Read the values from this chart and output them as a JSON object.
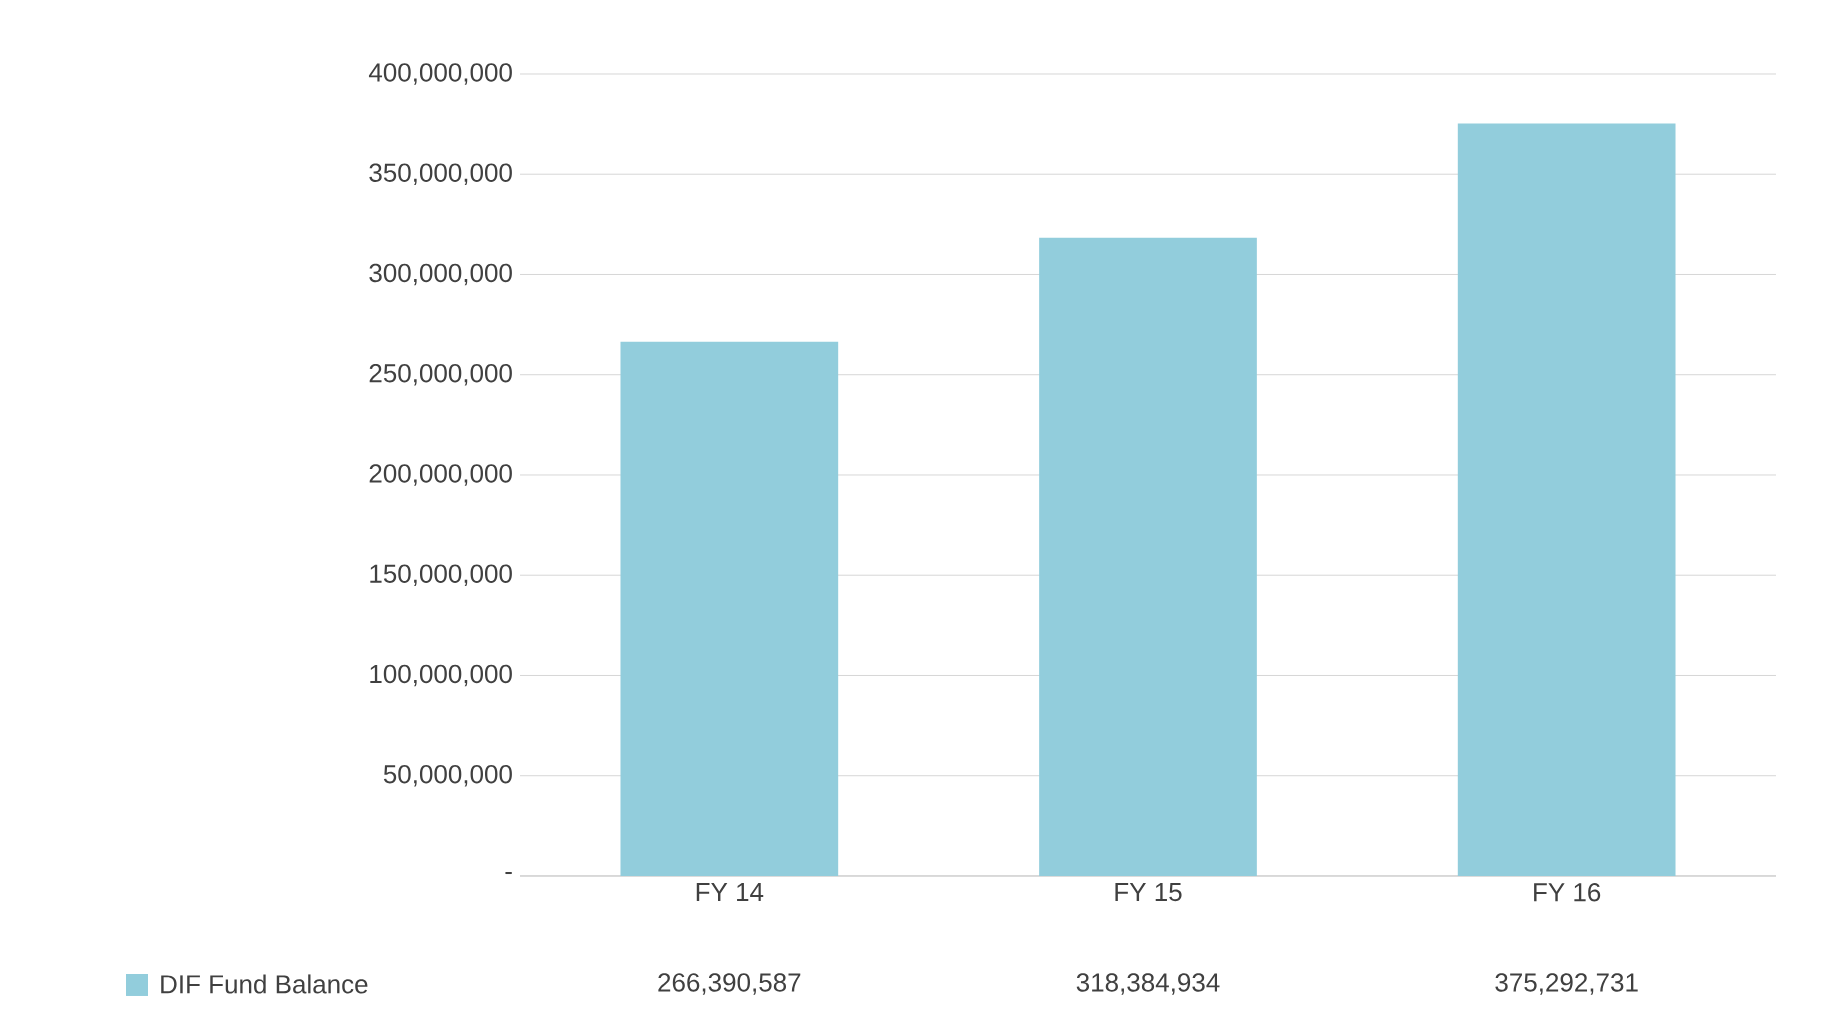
{
  "chart_data": {
    "type": "bar",
    "categories": [
      "FY 14",
      "FY 15",
      "FY 16"
    ],
    "series": [
      {
        "name": "DIF Fund Balance",
        "color": "#92cddc",
        "values": [
          266390587,
          318384934,
          375292731
        ],
        "value_labels": [
          "266,390,587",
          "318,384,934",
          "375,292,731"
        ]
      }
    ],
    "ylim": [
      0,
      400000000
    ],
    "yticks": [
      {
        "value": 0,
        "label": "-"
      },
      {
        "value": 50000000,
        "label": "50,000,000"
      },
      {
        "value": 100000000,
        "label": "100,000,000"
      },
      {
        "value": 150000000,
        "label": "150,000,000"
      },
      {
        "value": 200000000,
        "label": "200,000,000"
      },
      {
        "value": 250000000,
        "label": "250,000,000"
      },
      {
        "value": 300000000,
        "label": "300,000,000"
      },
      {
        "value": 350000000,
        "label": "350,000,000"
      },
      {
        "value": 400000000,
        "label": "400,000,000"
      }
    ],
    "grid": "y"
  }
}
